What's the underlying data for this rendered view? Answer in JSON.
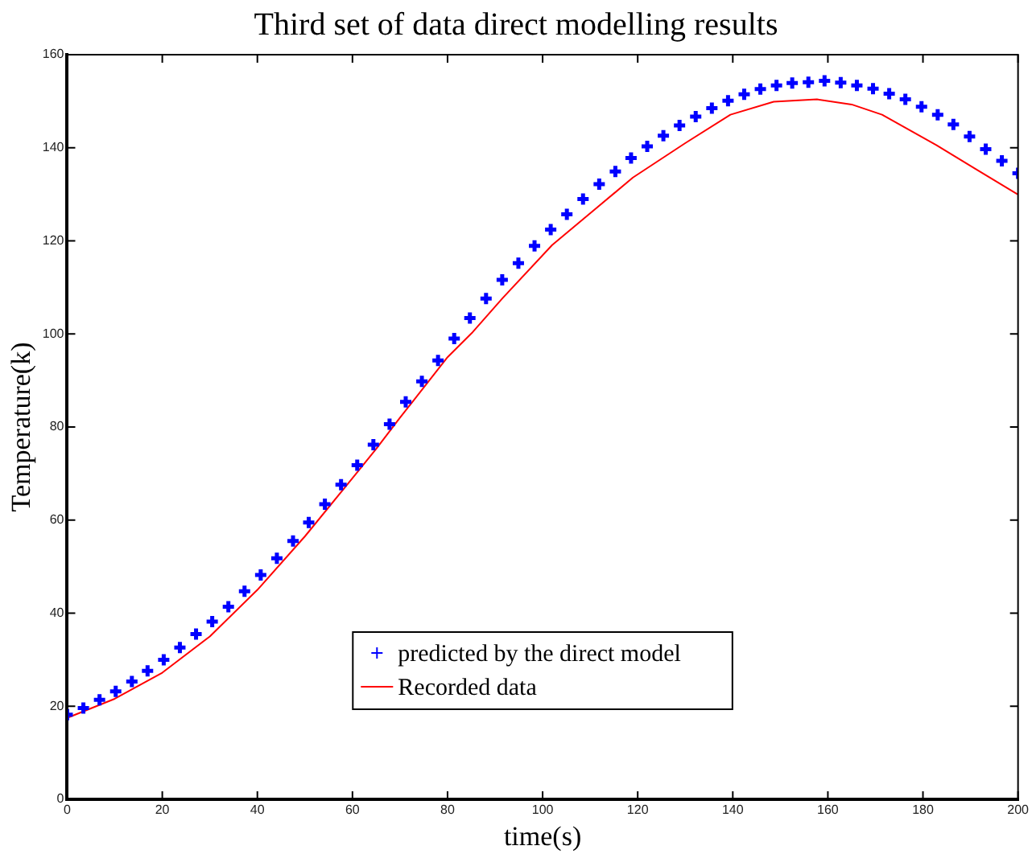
{
  "chart_data": {
    "type": "line",
    "title": "Third set of data direct modelling results",
    "xlabel": "time(s)",
    "ylabel": "Temperature(k)",
    "xlim": [
      0,
      200
    ],
    "xticks": [
      0,
      20,
      40,
      60,
      80,
      100,
      120,
      140,
      160,
      180,
      200
    ],
    "ylim": [
      0,
      160
    ],
    "yticks": [
      0,
      20,
      40,
      60,
      80,
      100,
      120,
      140,
      160
    ],
    "legend": "bottom",
    "series": [
      {
        "name": "predicted by the direct model",
        "type": "scatter",
        "marker": "cross",
        "color": "#0000ff",
        "x": [
          0,
          3.4,
          6.8,
          10.2,
          13.6,
          16.9,
          20.3,
          23.7,
          27.1,
          30.5,
          33.9,
          37.3,
          40.7,
          44.1,
          47.5,
          50.8,
          54.2,
          57.6,
          61,
          64.4,
          67.8,
          71.2,
          74.6,
          78,
          81.4,
          84.7,
          88.1,
          91.5,
          94.9,
          98.3,
          101.7,
          105.1,
          108.5,
          111.9,
          115.3,
          118.6,
          122,
          125.4,
          128.8,
          132.2,
          135.6,
          139,
          142.4,
          145.8,
          149.2,
          152.5,
          155.9,
          159.3,
          162.7,
          166.1,
          169.5,
          172.9,
          176.3,
          179.7,
          183.1,
          186.4,
          189.8,
          193.2,
          196.6,
          200
        ],
        "values": [
          18.2,
          19.6,
          21.4,
          23.2,
          25.3,
          27.6,
          30,
          32.6,
          35.5,
          38.2,
          41.4,
          44.7,
          48.2,
          51.8,
          55.5,
          59.5,
          63.4,
          67.6,
          71.8,
          76.2,
          80.6,
          85.4,
          89.8,
          94.3,
          99,
          103.4,
          107.6,
          111.6,
          115.2,
          118.9,
          122.4,
          125.7,
          129,
          132.2,
          134.9,
          137.8,
          140.3,
          142.6,
          144.8,
          146.7,
          148.5,
          150.1,
          151.5,
          152.6,
          153.4,
          153.9,
          154.1,
          154.4,
          154,
          153.4,
          152.7,
          151.6,
          150.4,
          148.8,
          147.1,
          145,
          142.4,
          139.7,
          137.2,
          134.5
        ]
      },
      {
        "name": "Recorded data",
        "marker": "none",
        "line_style": "solid",
        "color": "#ff0000",
        "x": [
          0,
          10,
          20,
          30,
          40,
          50,
          60,
          65,
          70,
          80,
          85.3,
          91.6,
          102,
          119,
          130,
          139.5,
          148.6,
          157.7,
          165,
          171.4,
          182.8,
          191,
          199.9
        ],
        "values": [
          17.5,
          21.6,
          27.2,
          35,
          45,
          56.5,
          69,
          75.3,
          82,
          95,
          100.4,
          107.7,
          119.1,
          133.6,
          141,
          147.1,
          149.9,
          150.4,
          149.3,
          147.1,
          140.6,
          135.5,
          130
        ]
      }
    ]
  }
}
